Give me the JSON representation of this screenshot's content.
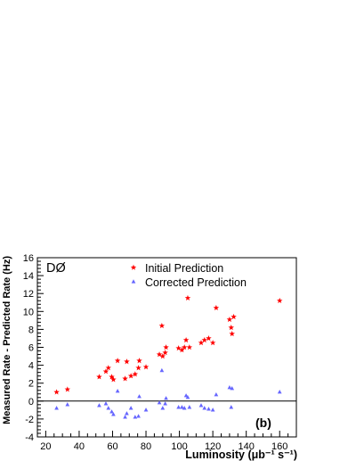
{
  "chart_data": {
    "type": "scatter",
    "title": "",
    "xlabel": "Luminosity (μb⁻¹ s⁻¹)",
    "ylabel": "Measured Rate - Predicted Rate (Hz)",
    "xlim": [
      15,
      170
    ],
    "ylim": [
      -4,
      16
    ],
    "xticks": [
      20,
      40,
      60,
      80,
      100,
      120,
      140,
      160
    ],
    "yticks": [
      -4,
      -2,
      0,
      2,
      4,
      6,
      8,
      10,
      12,
      14,
      16
    ],
    "grid": false,
    "zero_line": true,
    "experiment_label": "DØ",
    "panel_label": "(b)",
    "legend_position": "top-center",
    "series": [
      {
        "name": "Initial Prediction",
        "marker": "star",
        "color": "#ff0000",
        "points": [
          [
            26.5,
            1.0
          ],
          [
            33,
            1.3
          ],
          [
            52,
            2.7
          ],
          [
            56,
            3.3
          ],
          [
            57.5,
            3.7
          ],
          [
            59.5,
            2.7
          ],
          [
            60.5,
            2.4
          ],
          [
            63,
            4.5
          ],
          [
            67.5,
            2.5
          ],
          [
            68.5,
            4.4
          ],
          [
            71,
            2.8
          ],
          [
            73.5,
            3.0
          ],
          [
            75.5,
            3.7
          ],
          [
            76,
            4.5
          ],
          [
            80,
            3.8
          ],
          [
            88,
            5.2
          ],
          [
            89.5,
            8.4
          ],
          [
            90,
            5.0
          ],
          [
            91.5,
            5.4
          ],
          [
            92,
            6.0
          ],
          [
            99.5,
            5.9
          ],
          [
            101.5,
            5.7
          ],
          [
            103,
            6.0
          ],
          [
            104,
            6.8
          ],
          [
            105,
            11.5
          ],
          [
            106,
            6.0
          ],
          [
            113,
            6.5
          ],
          [
            115,
            6.8
          ],
          [
            117.5,
            7.0
          ],
          [
            120,
            6.5
          ],
          [
            122,
            10.4
          ],
          [
            130,
            9.1
          ],
          [
            131,
            8.2
          ],
          [
            131.5,
            7.5
          ],
          [
            132.5,
            9.4
          ],
          [
            160,
            11.2
          ]
        ]
      },
      {
        "name": "Corrected Prediction",
        "marker": "triangle",
        "color": "#6666ff",
        "points": [
          [
            26.5,
            -0.8
          ],
          [
            33,
            -0.4
          ],
          [
            52,
            -0.5
          ],
          [
            56,
            -0.3
          ],
          [
            57.5,
            -0.8
          ],
          [
            59.5,
            -1.2
          ],
          [
            60.5,
            -1.5
          ],
          [
            63,
            1.1
          ],
          [
            67.5,
            -1.8
          ],
          [
            68.5,
            -1.4
          ],
          [
            71,
            -0.8
          ],
          [
            73.5,
            -1.8
          ],
          [
            75.5,
            -1.7
          ],
          [
            76,
            0.5
          ],
          [
            80,
            -1.0
          ],
          [
            88,
            -0.2
          ],
          [
            89.5,
            3.4
          ],
          [
            90,
            -0.8
          ],
          [
            91.5,
            -0.3
          ],
          [
            92,
            0.3
          ],
          [
            99.5,
            -0.7
          ],
          [
            101.5,
            -0.7
          ],
          [
            103,
            -0.8
          ],
          [
            104,
            0.6
          ],
          [
            105,
            0.4
          ],
          [
            106,
            -0.7
          ],
          [
            113,
            -0.5
          ],
          [
            115,
            -0.8
          ],
          [
            117.5,
            -0.9
          ],
          [
            120,
            -1.0
          ],
          [
            122,
            0.7
          ],
          [
            130,
            1.5
          ],
          [
            131,
            -0.7
          ],
          [
            131.5,
            1.4
          ],
          [
            160,
            1.0
          ]
        ]
      }
    ]
  }
}
